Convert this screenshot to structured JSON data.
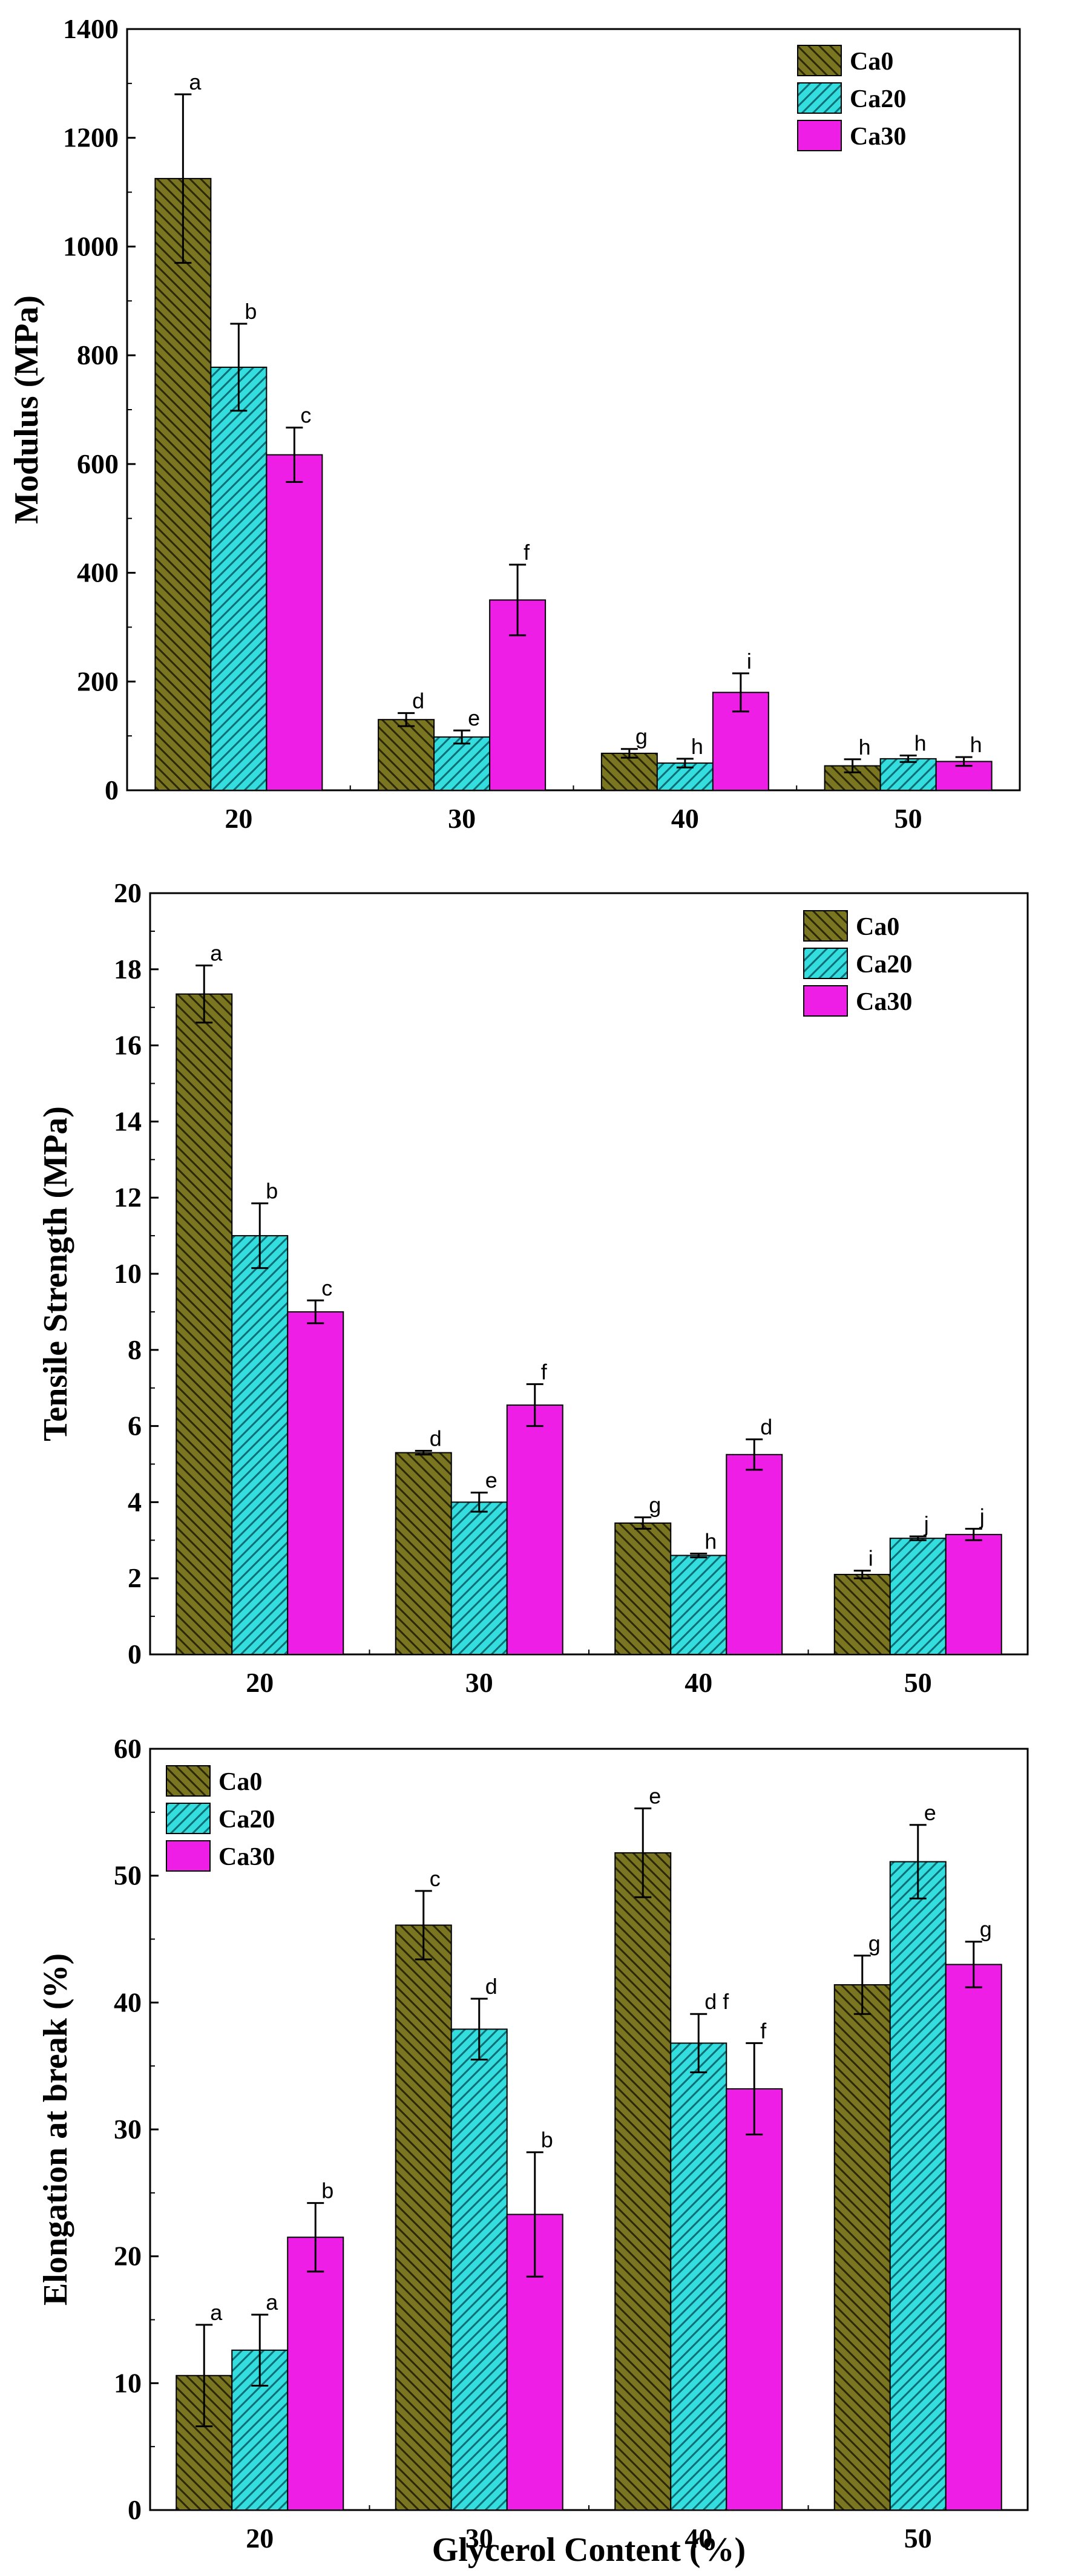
{
  "series_styles": [
    {
      "name": "Ca0",
      "fill": "#7a7520",
      "hatch": "#2a2806",
      "pattern": "back"
    },
    {
      "name": "Ca20",
      "fill": "#35dede",
      "hatch": "#0d6e73",
      "pattern": "fwd"
    },
    {
      "name": "Ca30",
      "fill": "#ee1ee6",
      "hatch": null,
      "pattern": "none"
    }
  ],
  "shared_xlabel": "Glycerol Content (%)",
  "chart_data": [
    {
      "type": "bar",
      "title": "",
      "xlabel": "",
      "ylabel": "Modulus (MPa)",
      "ylim": [
        0,
        1400
      ],
      "yticks": [
        0,
        200,
        400,
        600,
        800,
        1000,
        1200,
        1400
      ],
      "categories": [
        "20",
        "30",
        "40",
        "50"
      ],
      "legend_position": "top-right",
      "series": [
        {
          "name": "Ca0",
          "values": [
            1125,
            130,
            68,
            45
          ],
          "errors": [
            155,
            12,
            8,
            12
          ],
          "letters": [
            "a",
            "d",
            "g",
            "h"
          ]
        },
        {
          "name": "Ca20",
          "values": [
            778,
            98,
            50,
            58
          ],
          "errors": [
            80,
            12,
            8,
            6
          ],
          "letters": [
            "b",
            "e",
            "h",
            "h"
          ]
        },
        {
          "name": "Ca30",
          "values": [
            617,
            350,
            180,
            53
          ],
          "errors": [
            50,
            65,
            35,
            8
          ],
          "letters": [
            "c",
            "f",
            "i",
            "h"
          ]
        }
      ]
    },
    {
      "type": "bar",
      "title": "",
      "xlabel": "",
      "ylabel": "Tensile Strength (MPa)",
      "ylim": [
        0,
        20
      ],
      "yticks": [
        0,
        2,
        4,
        6,
        8,
        10,
        12,
        14,
        16,
        18,
        20
      ],
      "categories": [
        "20",
        "30",
        "40",
        "50"
      ],
      "legend_position": "top-right",
      "series": [
        {
          "name": "Ca0",
          "values": [
            17.35,
            5.3,
            3.45,
            2.1
          ],
          "errors": [
            0.75,
            0.05,
            0.15,
            0.1
          ],
          "letters": [
            "a",
            "d",
            "g",
            "i"
          ]
        },
        {
          "name": "Ca20",
          "values": [
            11.0,
            4.0,
            2.6,
            3.05
          ],
          "errors": [
            0.85,
            0.25,
            0.05,
            0.05
          ],
          "letters": [
            "b",
            "e",
            "h",
            "j"
          ]
        },
        {
          "name": "Ca30",
          "values": [
            9.0,
            6.55,
            5.25,
            3.15
          ],
          "errors": [
            0.3,
            0.55,
            0.4,
            0.15
          ],
          "letters": [
            "c",
            "f",
            "d",
            "j"
          ]
        }
      ]
    },
    {
      "type": "bar",
      "title": "",
      "xlabel": "Glycerol Content (%)",
      "ylabel": "Elongation at break (%)",
      "ylim": [
        0,
        60
      ],
      "yticks": [
        0,
        10,
        20,
        30,
        40,
        50,
        60
      ],
      "categories": [
        "20",
        "30",
        "40",
        "50"
      ],
      "legend_position": "top-left",
      "series": [
        {
          "name": "Ca0",
          "values": [
            10.6,
            46.1,
            51.8,
            41.4
          ],
          "errors": [
            4.0,
            2.7,
            3.5,
            2.3
          ],
          "letters": [
            "a",
            "c",
            "e",
            "g"
          ]
        },
        {
          "name": "Ca20",
          "values": [
            12.6,
            37.9,
            36.8,
            51.1
          ],
          "errors": [
            2.8,
            2.4,
            2.3,
            2.9
          ],
          "letters": [
            "a",
            "d",
            "d f",
            "e"
          ]
        },
        {
          "name": "Ca30",
          "values": [
            21.5,
            23.3,
            33.2,
            43.0
          ],
          "errors": [
            2.7,
            4.9,
            3.6,
            1.8
          ],
          "letters": [
            "b",
            "b",
            "f",
            "g"
          ]
        }
      ]
    }
  ]
}
